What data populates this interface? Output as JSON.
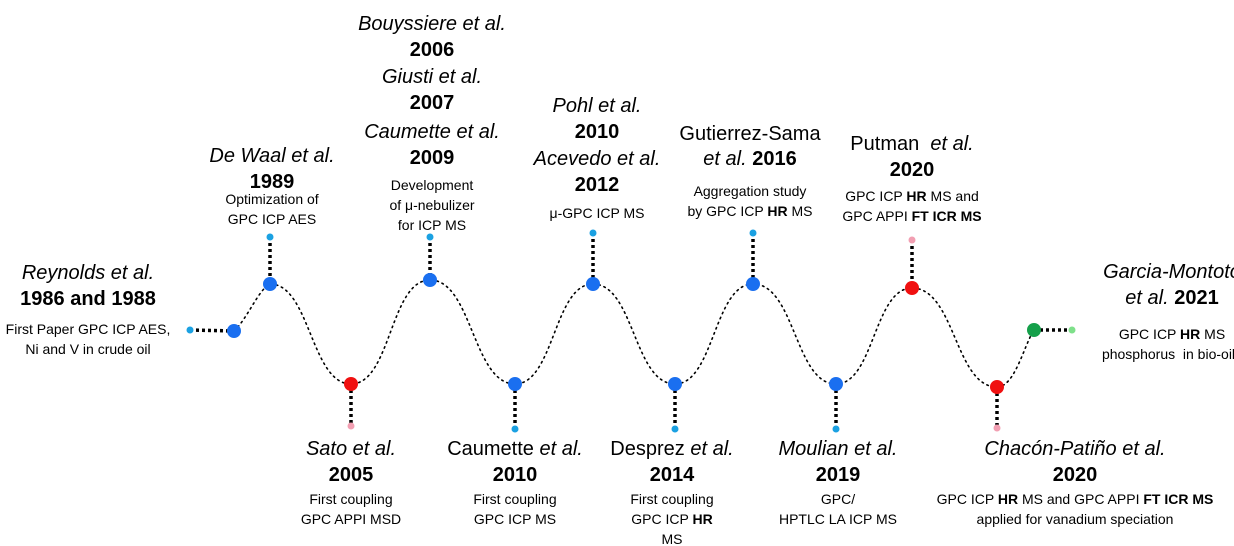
{
  "events": [
    {
      "lines": [
        [
          "Reynolds et al."
        ],
        [
          "1986 and 1988"
        ],
        [
          "First Paper GPC ICP AES,"
        ],
        [
          "Ni and V in crude oil"
        ]
      ]
    },
    {
      "lines": [
        [
          "De Waal et al."
        ],
        [
          "1989"
        ],
        [
          "Optimization of"
        ],
        [
          "GPC ICP AES"
        ]
      ]
    },
    {
      "lines": [
        [
          "Bouyssiere et al."
        ],
        [
          "2006"
        ],
        [
          "Giusti et al."
        ],
        [
          "2007"
        ],
        [
          "Caumette et al."
        ],
        [
          "2009"
        ],
        [
          "Development"
        ],
        [
          "of μ-nebulizer"
        ],
        [
          "for ICP MS"
        ]
      ]
    },
    {
      "lines": [
        [
          "Pohl et al."
        ],
        [
          "2010"
        ],
        [
          "Acevedo et al."
        ],
        [
          "2012"
        ],
        [
          "μ-GPC ICP MS"
        ]
      ]
    },
    {
      "lines": [
        [
          "Gutierrez-Sama"
        ],
        [
          "et al.",
          " 2016"
        ],
        [
          "Aggregation study"
        ],
        [
          "by GPC ICP ",
          "HR",
          " MS"
        ]
      ]
    },
    {
      "lines": [
        [
          "Putman  ",
          "et al."
        ],
        [
          "2020"
        ],
        [
          "GPC ICP ",
          "HR",
          " MS and"
        ],
        [
          "GPC APPI ",
          "FT ICR MS"
        ]
      ]
    },
    {
      "lines": [
        [
          "Garcia-Montoto"
        ],
        [
          "et al.",
          " 2021"
        ],
        [
          "GPC ICP ",
          "HR",
          " MS"
        ],
        [
          "phosphorus  in bio-oils"
        ]
      ]
    },
    {
      "lines": [
        [
          "Sato et al."
        ],
        [
          "2005"
        ],
        [
          "First coupling"
        ],
        [
          "GPC APPI MSD"
        ]
      ]
    },
    {
      "lines": [
        [
          "Caumette ",
          "et al."
        ],
        [
          "2010"
        ],
        [
          "First coupling"
        ],
        [
          "GPC ICP MS"
        ]
      ]
    },
    {
      "lines": [
        [
          "Desprez ",
          "et al."
        ],
        [
          "2014"
        ],
        [
          "First coupling"
        ],
        [
          "GPC ICP ",
          "HR"
        ],
        [
          "MS"
        ]
      ]
    },
    {
      "lines": [
        [
          "Moulian et al."
        ],
        [
          "2019"
        ],
        [
          "GPC/"
        ],
        [
          "HPTLC LA ICP MS"
        ]
      ]
    },
    {
      "lines": [
        [
          "Chacón-Patiño et al."
        ],
        [
          "2020"
        ],
        [
          "GPC ICP ",
          "HR",
          " MS and GPC APPI ",
          "FT ICR MS"
        ],
        [
          "applied for vanadium speciation"
        ]
      ]
    }
  ]
}
